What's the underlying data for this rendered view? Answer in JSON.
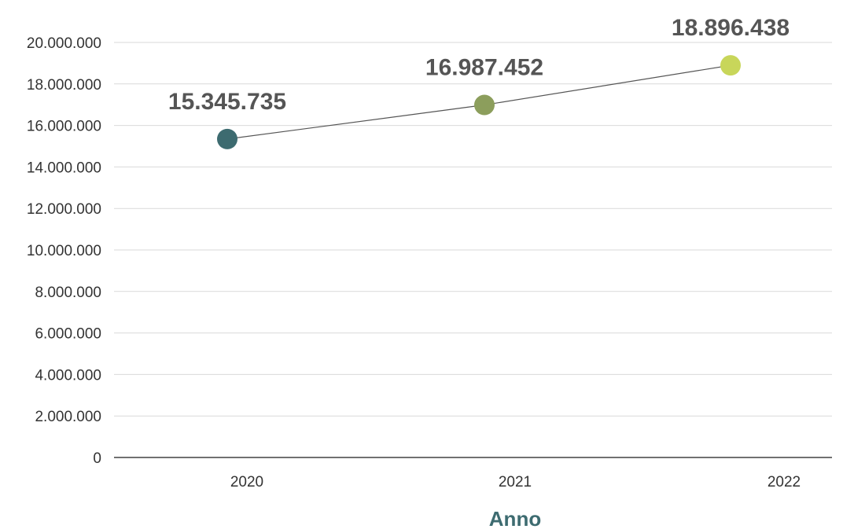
{
  "chart_data": {
    "type": "line",
    "title": "",
    "xlabel": "Anno",
    "ylabel": "",
    "categories": [
      "2020",
      "2021",
      "2022"
    ],
    "values": [
      15345735,
      16987452,
      18896438
    ],
    "data_labels": [
      "15.345.735",
      "16.987.452",
      "18.896.438"
    ],
    "point_colors": [
      "#3d6b70",
      "#8c9e5c",
      "#c8d65a"
    ],
    "ylim": [
      0,
      20000000
    ],
    "y_ticks": [
      0,
      2000000,
      4000000,
      6000000,
      8000000,
      10000000,
      12000000,
      14000000,
      16000000,
      18000000,
      20000000
    ],
    "y_tick_labels": [
      "0",
      "2.000.000",
      "4.000.000",
      "6.000.000",
      "8.000.000",
      "10.000.000",
      "12.000.000",
      "14.000.000",
      "16.000.000",
      "18.000.000",
      "20.000.000"
    ],
    "grid": true,
    "legend": "none"
  },
  "colors": {
    "axis_title": "#3d6b70",
    "line": "#555555",
    "gridline": "#d9d9d9",
    "baseline": "#404040"
  }
}
